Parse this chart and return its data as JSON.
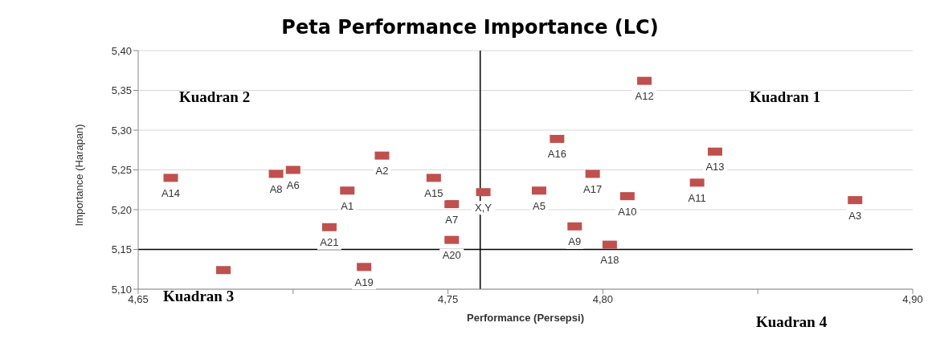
{
  "chart_data": {
    "type": "scatter",
    "title": "Peta Performance Importance (LC)",
    "xlabel": "Performance (Persepsi)",
    "ylabel": "Importance (Harapan)",
    "x": [
      4.6605,
      4.6775,
      4.6945,
      4.7,
      4.7117,
      4.7175,
      4.7229,
      4.7287,
      4.7454,
      4.7512,
      4.7512,
      4.7614,
      4.7794,
      4.7852,
      4.7909,
      4.7967,
      4.8022,
      4.8079,
      4.8134,
      4.8304,
      4.8362,
      4.8814
    ],
    "series": [
      {
        "color": "#c0504d",
        "values": [
          5.24,
          5.124,
          5.245,
          5.25,
          5.178,
          5.224,
          5.128,
          5.268,
          5.24,
          5.207,
          5.162,
          5.222,
          5.224,
          5.289,
          5.179,
          5.245,
          5.156,
          5.217,
          5.362,
          5.234,
          5.273,
          5.212
        ]
      }
    ],
    "marker": "square",
    "grid": "y",
    "xlim": [
      4.65,
      4.9
    ],
    "xticks": [
      {
        "value": 4.65,
        "label": "4,65"
      },
      {
        "value": 4.7,
        "label": null
      },
      {
        "value": 4.75,
        "label": "4,75"
      },
      {
        "value": 4.8,
        "label": "4,80"
      },
      {
        "value": 4.85,
        "label": null
      },
      {
        "value": 4.9,
        "label": "4,90"
      }
    ],
    "ylim": [
      5.1,
      5.4
    ],
    "yticks": [
      {
        "value": 5.1,
        "label": "5,10"
      },
      {
        "value": 5.15,
        "label": "5,15"
      },
      {
        "value": 5.2,
        "label": "5,20"
      },
      {
        "value": 5.25,
        "label": "5,25"
      },
      {
        "value": 5.3,
        "label": "5,30"
      },
      {
        "value": 5.35,
        "label": "5,35"
      },
      {
        "value": 5.4,
        "label": "5,40"
      }
    ],
    "ref_lines": [
      {
        "axis": "x",
        "value": 4.7604,
        "color": "#000000"
      },
      {
        "axis": "y",
        "value": 5.15,
        "color": "#000000"
      }
    ],
    "annotations": [
      "Kuadran  2",
      "Kuadran  1",
      "Kuadran  3",
      "Kuadran  4",
      {
        "text": "A14",
        "x": 4.6605,
        "y": 5.24
      },
      {
        "text": "A8",
        "x": 4.6945,
        "y": 5.245
      },
      {
        "text": "A6",
        "x": 4.7,
        "y": 5.25
      },
      {
        "text": "A21",
        "x": 4.7117,
        "y": 5.178
      },
      {
        "text": "A1",
        "x": 4.7175,
        "y": 5.224
      },
      {
        "text": "A19",
        "x": 4.7229,
        "y": 5.128
      },
      {
        "text": "A2",
        "x": 4.7287,
        "y": 5.268
      },
      {
        "text": "A15",
        "x": 4.7454,
        "y": 5.24
      },
      {
        "text": "A7",
        "x": 4.7512,
        "y": 5.207
      },
      {
        "text": "A20",
        "x": 4.7512,
        "y": 5.162
      },
      {
        "text": "X,Y",
        "x": 4.7614,
        "y": 5.222
      },
      {
        "text": "A5",
        "x": 4.7794,
        "y": 5.224
      },
      {
        "text": "A16",
        "x": 4.7852,
        "y": 5.289
      },
      {
        "text": "A9",
        "x": 4.7909,
        "y": 5.179
      },
      {
        "text": "A17",
        "x": 4.7967,
        "y": 5.245
      },
      {
        "text": "A18",
        "x": 4.8022,
        "y": 5.156
      },
      {
        "text": "A10",
        "x": 4.8079,
        "y": 5.217
      },
      {
        "text": "A12",
        "x": 4.8134,
        "y": 5.362
      },
      {
        "text": "A11",
        "x": 4.8304,
        "y": 5.234
      },
      {
        "text": "A13",
        "x": 4.8362,
        "y": 5.273
      },
      {
        "text": "A3",
        "x": 4.8814,
        "y": 5.212
      }
    ]
  }
}
